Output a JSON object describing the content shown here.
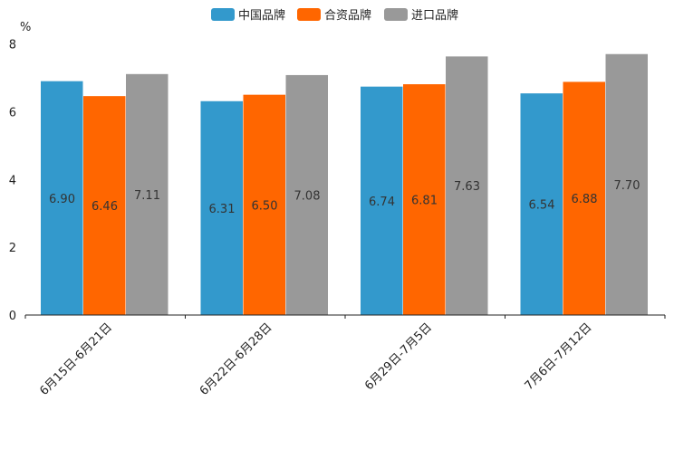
{
  "chart_data": {
    "type": "bar",
    "title": "",
    "xlabel": "",
    "ylabel": "%",
    "ylim": [
      0,
      8
    ],
    "yticks": [
      0,
      2,
      4,
      6,
      8
    ],
    "grid": false,
    "legend_position": "top-center",
    "categories": [
      "6月15日-6月21日",
      "6月22日-6月28日",
      "6月29日-7月5日",
      "7月6日-7月12日"
    ],
    "series": [
      {
        "name": "中国品牌",
        "color": "#3399cc",
        "values": [
          6.9,
          6.31,
          6.74,
          6.54
        ]
      },
      {
        "name": "合资品牌",
        "color": "#ff6600",
        "values": [
          6.46,
          6.5,
          6.81,
          6.88
        ]
      },
      {
        "name": "进口品牌",
        "color": "#999999",
        "values": [
          7.11,
          7.08,
          7.63,
          7.7
        ]
      }
    ]
  }
}
